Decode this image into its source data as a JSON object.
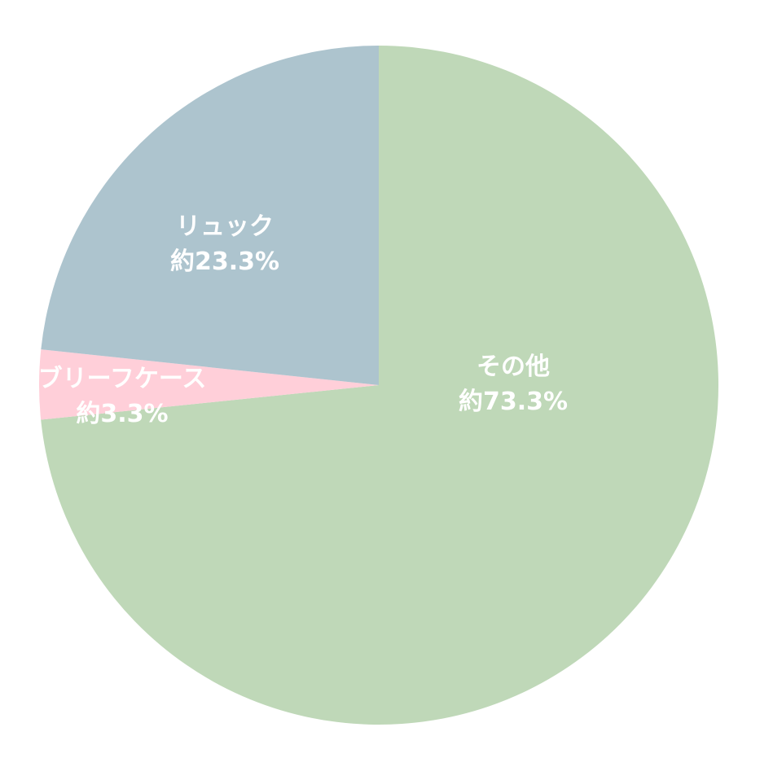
{
  "chart_data": {
    "type": "pie",
    "slices": [
      {
        "label": "その他",
        "pct_text": "約73.3%",
        "value": 73.3,
        "color": "#bfd8b8"
      },
      {
        "label": "ブリーフケース",
        "pct_text": "約3.3%",
        "value": 3.3,
        "color": "#ffcfd9"
      },
      {
        "label": "リュック",
        "pct_text": "約23.3%",
        "value": 23.3,
        "color": "#adc4ce"
      }
    ],
    "start_angle": "12 o'clock",
    "direction": "clockwise"
  }
}
